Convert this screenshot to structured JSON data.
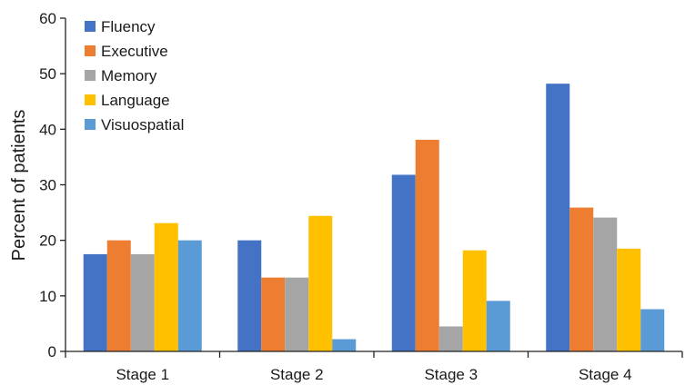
{
  "chart_data": {
    "type": "bar",
    "ylabel": "Percent of patients",
    "xlabel": "",
    "ylim": [
      0,
      60
    ],
    "yticks": [
      0,
      10,
      20,
      30,
      40,
      50,
      60
    ],
    "grid": false,
    "legend_position": "top-left",
    "categories": [
      "Stage 1",
      "Stage 2",
      "Stage 3",
      "Stage 4"
    ],
    "series": [
      {
        "name": "Fluency",
        "color": "#4472C4",
        "values": [
          17.5,
          20.0,
          31.8,
          48.2
        ]
      },
      {
        "name": "Executive",
        "color": "#ED7D31",
        "values": [
          20.0,
          13.3,
          38.1,
          25.9
        ]
      },
      {
        "name": "Memory",
        "color": "#A5A5A5",
        "values": [
          17.5,
          13.3,
          4.5,
          24.1
        ]
      },
      {
        "name": "Language",
        "color": "#FFC000",
        "values": [
          23.1,
          24.4,
          18.2,
          18.5
        ]
      },
      {
        "name": "Visuospatial",
        "color": "#5B9BD5",
        "values": [
          20.0,
          2.2,
          9.1,
          7.6
        ]
      }
    ]
  }
}
